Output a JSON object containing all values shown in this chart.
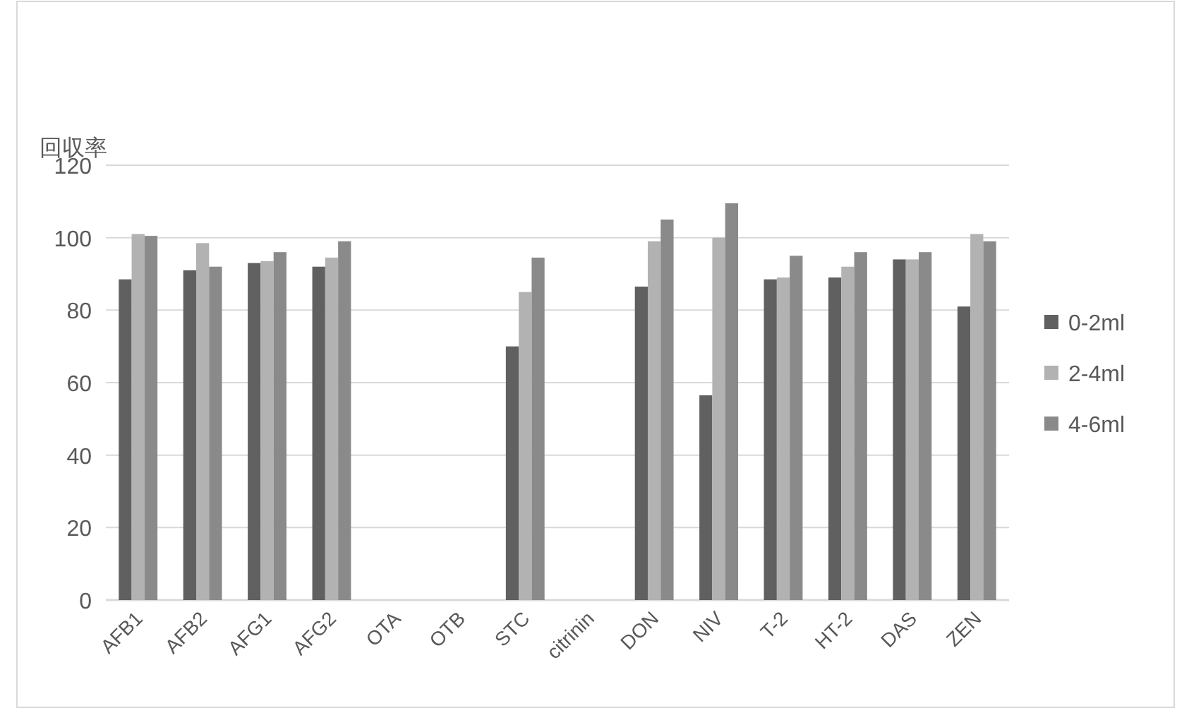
{
  "chart_data": {
    "type": "bar",
    "ylabel": "回収率",
    "categories": [
      "AFB1",
      "AFB2",
      "AFG1",
      "AFG2",
      "OTA",
      "OTB",
      "STC",
      "citrinin",
      "DON",
      "NIV",
      "T-2",
      "HT-2",
      "DAS",
      "ZEN"
    ],
    "series": [
      {
        "name": "0-2ml",
        "color": "#606060",
        "values": [
          88.5,
          91,
          93,
          92,
          null,
          null,
          70,
          null,
          86.5,
          56.5,
          88.5,
          89,
          94,
          81
        ]
      },
      {
        "name": "2-4ml",
        "color": "#b2b2b2",
        "values": [
          101,
          98.5,
          93.5,
          94.5,
          null,
          null,
          85,
          null,
          99,
          100,
          89,
          92,
          94,
          101
        ]
      },
      {
        "name": "4-6ml",
        "color": "#8a8a8a",
        "values": [
          100.5,
          92,
          96,
          99,
          null,
          null,
          94.5,
          null,
          105,
          109.5,
          95,
          96,
          96,
          99
        ]
      }
    ],
    "ylim": [
      0,
      120
    ],
    "yticks": [
      0,
      20,
      40,
      60,
      80,
      100,
      120
    ],
    "grid": "y",
    "legend": "right"
  }
}
